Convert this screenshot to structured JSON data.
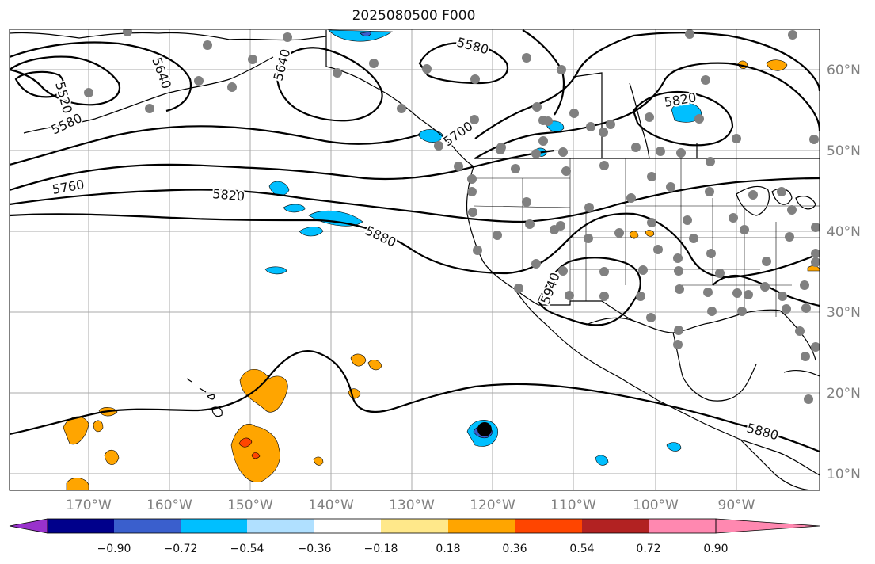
{
  "title": "2025080500 F000",
  "lon_labels": [
    "170°W",
    "160°W",
    "150°W",
    "140°W",
    "130°W",
    "120°W",
    "110°W",
    "100°W",
    "90°W"
  ],
  "lat_labels": [
    "60°N",
    "50°N",
    "40°N",
    "30°N",
    "20°N",
    "10°N"
  ],
  "colorbar": {
    "ticks": [
      "−0.90",
      "−0.72",
      "−0.54",
      "−0.36",
      "−0.18",
      "0.18",
      "0.36",
      "0.54",
      "0.72",
      "0.90"
    ],
    "colors": [
      "#9932cc",
      "#00008b",
      "#3a5fcd",
      "#00bfff",
      "#b0e0ff",
      "#ffffff",
      "#ffe88a",
      "#ffa500",
      "#ff4500",
      "#b22222",
      "#ff88b0"
    ]
  },
  "contour_labels": [
    "5520",
    "5580",
    "5640",
    "5580",
    "5640",
    "5700",
    "5760",
    "5820",
    "5880",
    "5820",
    "5940",
    "5880"
  ],
  "colors": {
    "land_line": "#000000",
    "grid": "#a9a9a9",
    "station_dot": "#808080"
  }
}
